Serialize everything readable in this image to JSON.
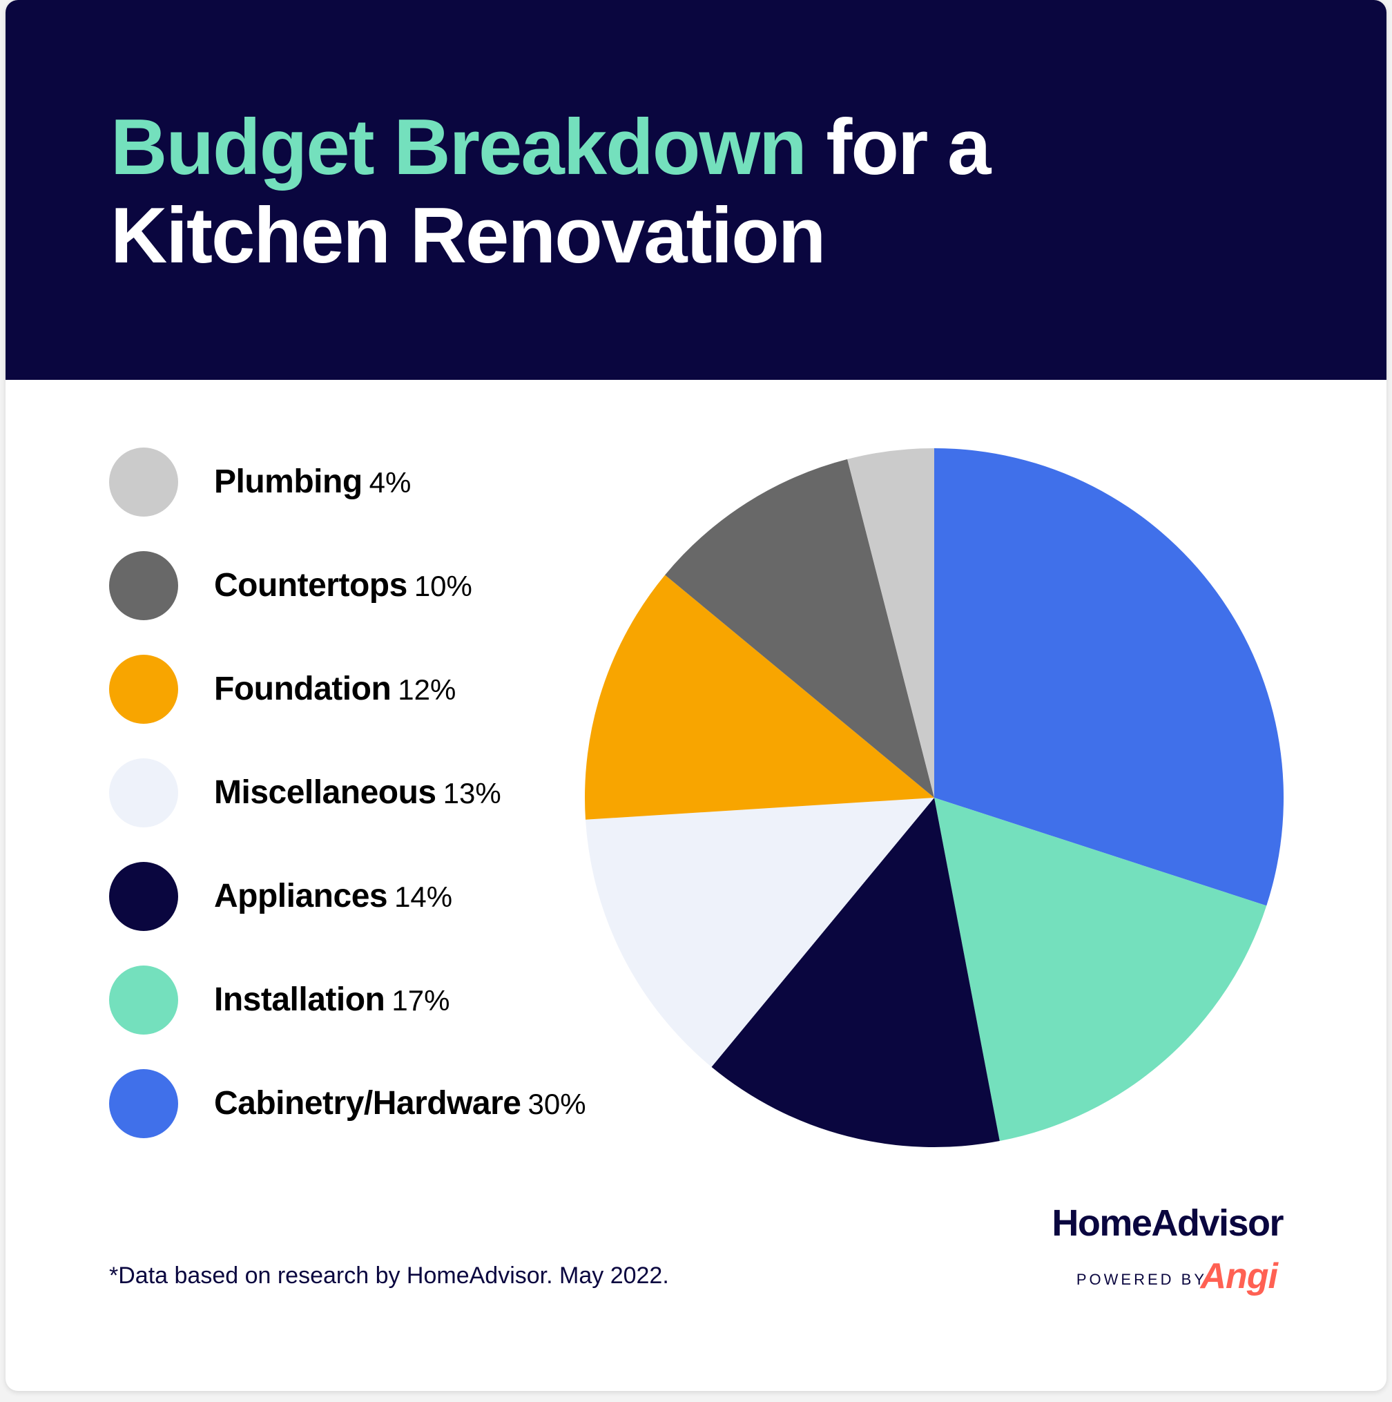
{
  "header": {
    "title_highlight": "Budget Breakdown",
    "title_rest_line1": " for a",
    "title_line2": "Kitchen Renovation"
  },
  "colors": {
    "header_bg": "#0a063f",
    "highlight": "#74e0bd",
    "brand_accent": "#ff6153"
  },
  "chart_data": {
    "type": "pie",
    "title": "Budget Breakdown for a Kitchen Renovation",
    "unit": "%",
    "legend_placement": "left",
    "slices": [
      {
        "label": "Plumbing",
        "value": 4,
        "pct_label": "4%",
        "color": "#cbcbcb"
      },
      {
        "label": "Countertops",
        "value": 10,
        "pct_label": "10%",
        "color": "#686868"
      },
      {
        "label": "Foundation",
        "value": 12,
        "pct_label": "12%",
        "color": "#f8a500"
      },
      {
        "label": "Miscellaneous",
        "value": 13,
        "pct_label": "13%",
        "color": "#eef2fa"
      },
      {
        "label": "Appliances",
        "value": 14,
        "pct_label": "14%",
        "color": "#0a063f"
      },
      {
        "label": "Installation",
        "value": 17,
        "pct_label": "17%",
        "color": "#74e0bd"
      },
      {
        "label": "Cabinetry/Hardware",
        "value": 30,
        "pct_label": "30%",
        "color": "#4070ea"
      }
    ]
  },
  "footnote": "*Data based on research by HomeAdvisor. May 2022.",
  "brand": {
    "name": "HomeAdvisor",
    "powered_by": "POWERED BY",
    "partner": "Angi"
  }
}
